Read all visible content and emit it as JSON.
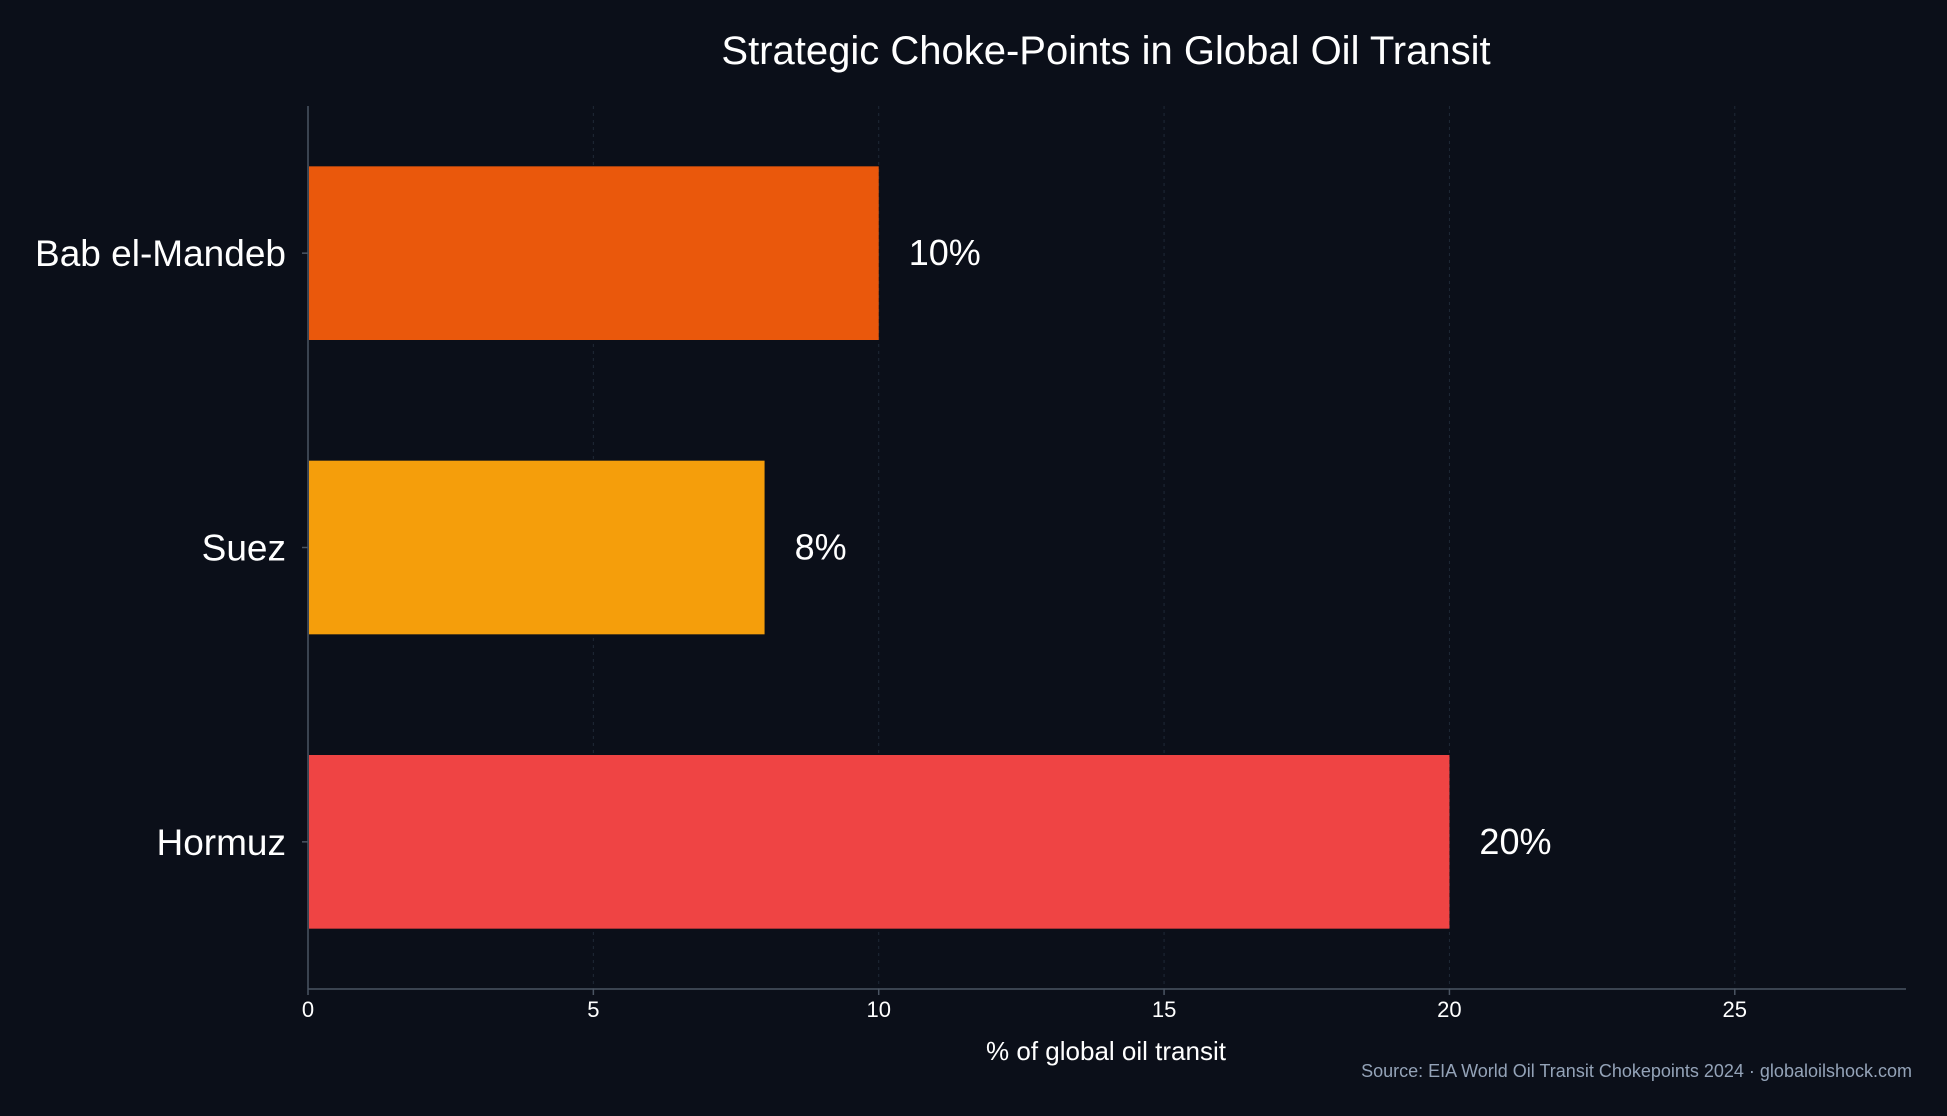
{
  "chart_data": {
    "type": "bar",
    "orientation": "horizontal",
    "title": "Strategic Choke-Points in Global Oil Transit",
    "xlabel": "% of global oil transit",
    "ylabel": "",
    "categories": [
      "Bab el-Mandeb",
      "Suez",
      "Hormuz"
    ],
    "values": [
      10,
      8,
      20
    ],
    "value_labels": [
      "10%",
      "8%",
      "20%"
    ],
    "colors": [
      "#ea580c",
      "#f59e0b",
      "#ef4444"
    ],
    "xlim": [
      0,
      28
    ],
    "xticks": [
      0,
      5,
      10,
      15,
      20,
      25
    ],
    "grid": "vertical, dotted",
    "legend": "none",
    "source": "Source: EIA World Oil Transit Chokepoints 2024 · globaloilshock.com"
  },
  "theme": {
    "background": "#0b0f19",
    "text": "#ffffff",
    "axis": "#4b5563",
    "grid": "#1f2937",
    "source_text": "#94a3b8"
  }
}
